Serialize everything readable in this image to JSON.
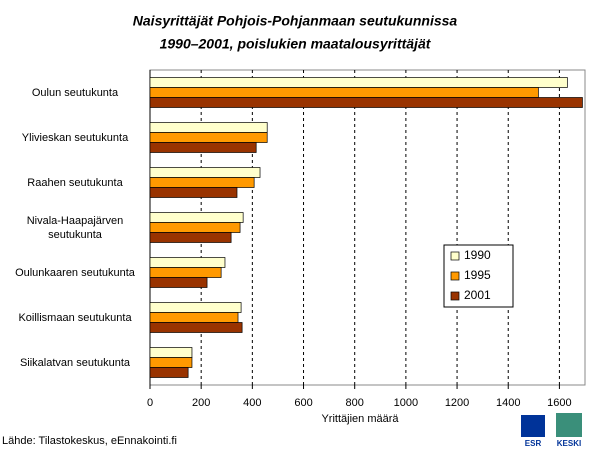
{
  "chart_data": {
    "type": "hbar",
    "title": "Naisyrittäjät Pohjois-Pohjanmaan seutukunnissa",
    "subtitle": "1990–2001, poislukien maatalousyrittäjät",
    "categories": [
      "Oulun seutukunta",
      "Ylivieskan seutukunta",
      "Raahen seutukunta",
      "Nivala-Haapajärven seutukunta",
      "Oulunkaaren seutukunta",
      "Koillismaan seutukunta",
      "Siikalatvan seutukunta"
    ],
    "series": [
      {
        "name": "1990",
        "color": "#ffffcc",
        "values": [
          1631,
          458,
          430,
          364,
          293,
          356,
          164
        ]
      },
      {
        "name": "1995",
        "color": "#ff9900",
        "values": [
          1518,
          458,
          407,
          352,
          278,
          344,
          164
        ]
      },
      {
        "name": "2001",
        "color": "#993300",
        "values": [
          1690,
          415,
          340,
          317,
          223,
          360,
          149
        ]
      }
    ],
    "xlim": [
      0,
      1700
    ],
    "xticks": [
      0,
      200,
      400,
      600,
      800,
      1000,
      1200,
      1400,
      1600
    ],
    "xlabel": "Yrittäjien määrä",
    "grid": true,
    "legend": "right",
    "source": "Lähde: Tilastokeskus, eEnnakointi.fi",
    "logos": [
      "ESR",
      "KESKI"
    ]
  }
}
